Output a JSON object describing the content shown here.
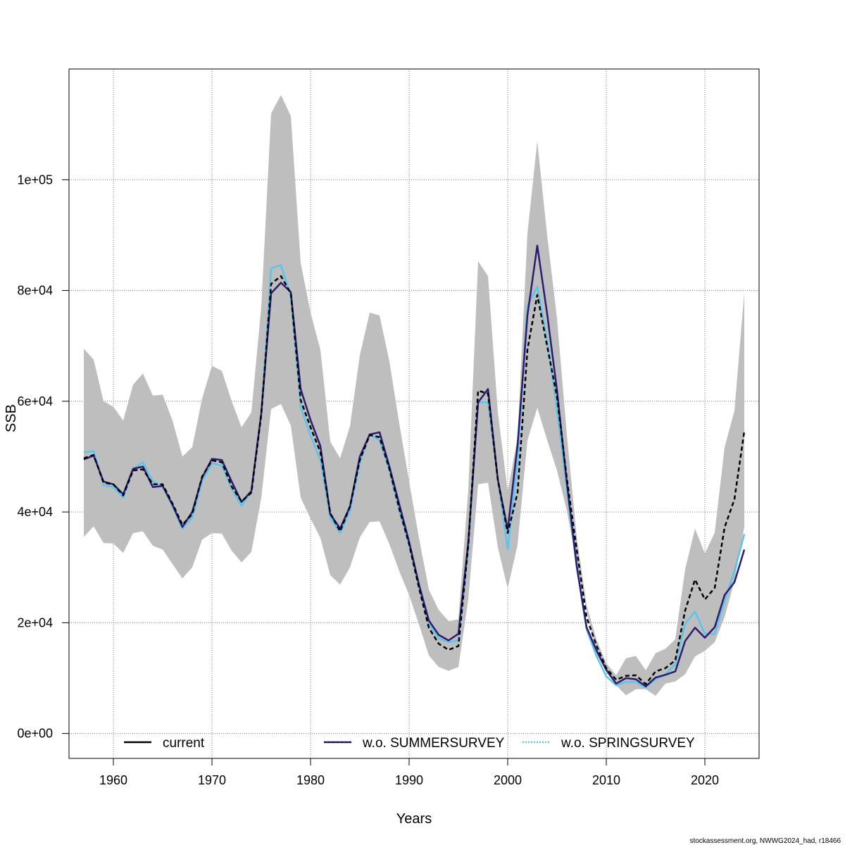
{
  "chart_data": {
    "type": "line",
    "xlabel": "Years",
    "ylabel": "SSB",
    "xlim": [
      1955.5,
      2025.5
    ],
    "ylim": [
      -4500,
      120000
    ],
    "x_ticks": [
      1960,
      1970,
      1980,
      1990,
      2000,
      2010,
      2020
    ],
    "x_tick_labels": [
      "1960",
      "1970",
      "1980",
      "1990",
      "2000",
      "2010",
      "2020"
    ],
    "y_ticks": [
      0,
      20000,
      40000,
      60000,
      80000,
      100000
    ],
    "y_tick_labels": [
      "0e+00",
      "2e+04",
      "4e+04",
      "6e+04",
      "8e+04",
      "1e+05"
    ],
    "grid": true,
    "legend_position": "bottom",
    "legend": [
      {
        "label": "current",
        "color": "#000000",
        "style": "solid"
      },
      {
        "label": "w.o. SUMMERSURVEY",
        "color": "#2e1a6e",
        "style": "solid"
      },
      {
        "label": "w.o. SPRINGSURVEY",
        "color": "#5bc4ec",
        "style": "dotted"
      }
    ],
    "band_color": "#bebebe",
    "x": [
      1957,
      1958,
      1959,
      1960,
      1961,
      1962,
      1963,
      1964,
      1965,
      1966,
      1967,
      1968,
      1969,
      1970,
      1971,
      1972,
      1973,
      1974,
      1975,
      1976,
      1977,
      1978,
      1979,
      1980,
      1981,
      1982,
      1983,
      1984,
      1985,
      1986,
      1987,
      1988,
      1989,
      1990,
      1991,
      1992,
      1993,
      1994,
      1995,
      1996,
      1997,
      1998,
      1999,
      2000,
      2001,
      2002,
      2003,
      2004,
      2005,
      2006,
      2007,
      2008,
      2009,
      2010,
      2011,
      2012,
      2013,
      2014,
      2015,
      2016,
      2017,
      2018,
      2019,
      2020,
      2021,
      2022,
      2023,
      2024
    ],
    "band": {
      "name": "confidence interval",
      "upper": [
        69500,
        67500,
        60000,
        59000,
        56500,
        63000,
        65000,
        61000,
        61200,
        56500,
        50000,
        51700,
        60500,
        66400,
        65500,
        60000,
        55300,
        58000,
        77000,
        112000,
        115300,
        111500,
        85000,
        76000,
        69300,
        52700,
        49700,
        55500,
        68300,
        76000,
        75500,
        67200,
        56000,
        45500,
        35300,
        26000,
        22300,
        20300,
        20600,
        44000,
        85300,
        82600,
        58000,
        43700,
        53500,
        90300,
        107000,
        90000,
        75000,
        54000,
        35500,
        23200,
        17000,
        12700,
        10500,
        13600,
        14000,
        11400,
        14500,
        15300,
        17000,
        29700,
        37000,
        32500,
        36300,
        51700,
        58300,
        79700
      ],
      "lower": [
        35500,
        37400,
        34400,
        34300,
        32600,
        36200,
        36500,
        33900,
        33200,
        30600,
        28000,
        30000,
        35000,
        36200,
        36100,
        33000,
        30900,
        32800,
        42500,
        58600,
        59500,
        55600,
        42600,
        38800,
        35300,
        28600,
        26900,
        30000,
        35400,
        38200,
        38300,
        34200,
        29300,
        25000,
        19700,
        14100,
        12000,
        11300,
        12000,
        24200,
        45000,
        45300,
        33600,
        26200,
        34100,
        52900,
        58800,
        53000,
        47500,
        40200,
        30800,
        22200,
        14500,
        11000,
        8700,
        6900,
        8000,
        8000,
        6800,
        9000,
        9400,
        10700,
        13900,
        14900,
        16500,
        21000,
        27500,
        37300
      ]
    },
    "series": [
      {
        "name": "current",
        "color": "#000000",
        "dash": "6,4",
        "width": 2.5,
        "values": [
          49700,
          50300,
          45300,
          45000,
          43000,
          47500,
          47700,
          45000,
          45000,
          41500,
          37700,
          39600,
          46400,
          49300,
          49000,
          44600,
          41900,
          43500,
          57500,
          81200,
          82600,
          79500,
          60200,
          55300,
          50800,
          39800,
          36500,
          41000,
          49400,
          53900,
          53500,
          47800,
          40600,
          34200,
          26300,
          19100,
          16200,
          15100,
          15800,
          34000,
          61900,
          61400,
          45800,
          36200,
          43500,
          69300,
          79200,
          70000,
          60800,
          46000,
          33200,
          21000,
          15900,
          11800,
          9700,
          10400,
          10500,
          8900,
          11200,
          11800,
          13200,
          22200,
          27800,
          24200,
          26300,
          37200,
          42300,
          54600
        ]
      },
      {
        "name": "w.o. SUMMERSURVEY",
        "color": "#2e1a6e",
        "dash": "",
        "width": 2.5,
        "values": [
          49500,
          50200,
          45500,
          45000,
          43200,
          47800,
          48200,
          44500,
          44700,
          41300,
          37300,
          40000,
          46200,
          49600,
          49400,
          45500,
          41800,
          43800,
          57800,
          79500,
          81400,
          79700,
          62200,
          56600,
          51900,
          39600,
          37000,
          41000,
          50000,
          54000,
          54400,
          48200,
          41400,
          34600,
          26900,
          20400,
          17800,
          16800,
          18000,
          34500,
          59800,
          62200,
          45800,
          36800,
          52100,
          75500,
          88100,
          75800,
          62000,
          45300,
          30300,
          19200,
          15000,
          11500,
          9000,
          10000,
          9800,
          8500,
          10100,
          10600,
          11200,
          16700,
          19100,
          17300,
          19200,
          25000,
          27300,
          33200
        ]
      },
      {
        "name": "w.o. SPRINGSURVEY",
        "color": "#5bc4ec",
        "dash": "",
        "width": 2.5,
        "values": [
          50800,
          51000,
          44800,
          44500,
          42600,
          47700,
          49000,
          45500,
          44600,
          41000,
          37000,
          39000,
          45600,
          48800,
          48400,
          44200,
          41100,
          43800,
          57600,
          84000,
          84600,
          78800,
          59000,
          53700,
          49400,
          39000,
          36200,
          40200,
          49000,
          54000,
          53000,
          47500,
          40200,
          34000,
          26400,
          19800,
          17200,
          16500,
          16800,
          33500,
          59800,
          59800,
          46000,
          33300,
          49200,
          77300,
          80700,
          71000,
          58500,
          44000,
          30000,
          18800,
          14000,
          10300,
          8700,
          9300,
          9300,
          8300,
          9800,
          10700,
          12500,
          19800,
          22000,
          18000,
          18000,
          24000,
          29300,
          36000
        ]
      }
    ]
  },
  "footer": "stockassessment.org, NWWG2024_had, r18466"
}
